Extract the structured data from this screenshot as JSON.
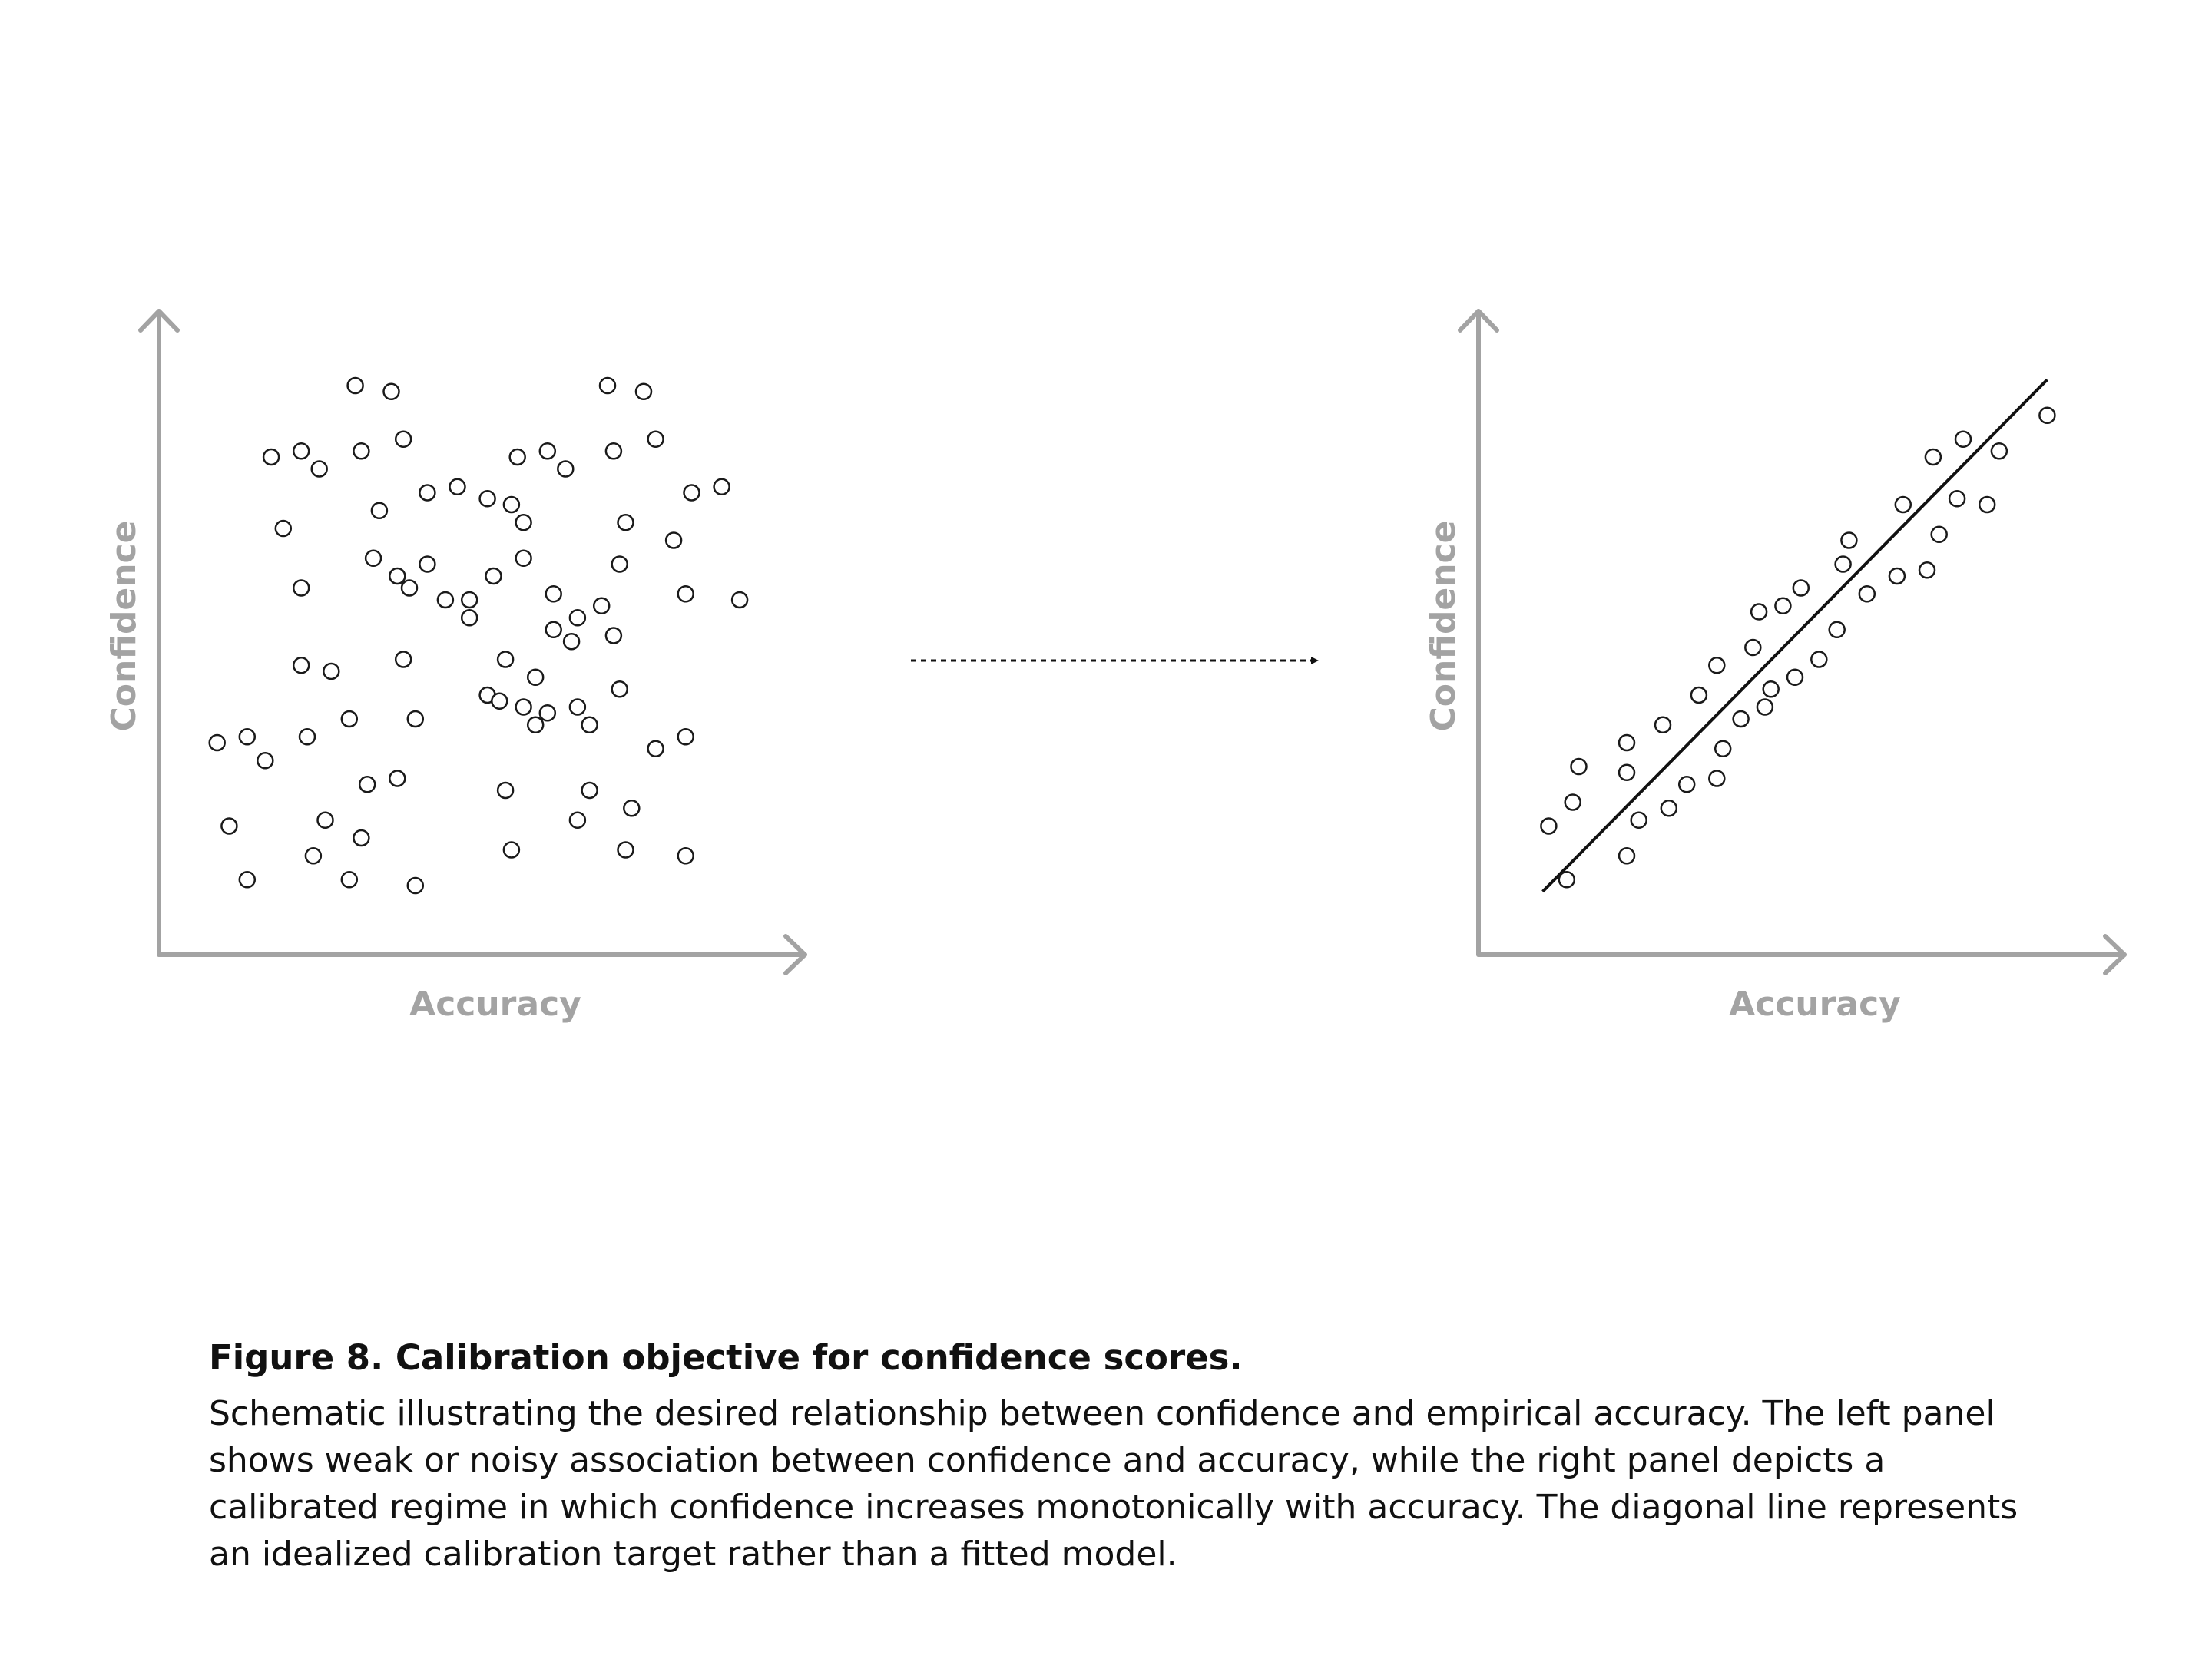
{
  "chart_data": [
    {
      "type": "scatter",
      "title": "",
      "xlabel": "Accuracy",
      "ylabel": "Confidence",
      "xlim": [
        0,
        1
      ],
      "ylim": [
        0,
        1
      ],
      "grid": false,
      "series": [
        {
          "points": [
            [
              0.3,
              0.92
            ],
            [
              0.36,
              0.91
            ],
            [
              0.72,
              0.92
            ],
            [
              0.78,
              0.91
            ],
            [
              0.16,
              0.8
            ],
            [
              0.21,
              0.81
            ],
            [
              0.24,
              0.78
            ],
            [
              0.31,
              0.81
            ],
            [
              0.38,
              0.83
            ],
            [
              0.57,
              0.8
            ],
            [
              0.62,
              0.81
            ],
            [
              0.65,
              0.78
            ],
            [
              0.73,
              0.81
            ],
            [
              0.8,
              0.83
            ],
            [
              0.42,
              0.74
            ],
            [
              0.47,
              0.75
            ],
            [
              0.52,
              0.73
            ],
            [
              0.56,
              0.72
            ],
            [
              0.86,
              0.74
            ],
            [
              0.91,
              0.75
            ],
            [
              0.18,
              0.68
            ],
            [
              0.34,
              0.71
            ],
            [
              0.58,
              0.69
            ],
            [
              0.75,
              0.69
            ],
            [
              0.83,
              0.66
            ],
            [
              0.33,
              0.63
            ],
            [
              0.42,
              0.62
            ],
            [
              0.53,
              0.6
            ],
            [
              0.58,
              0.63
            ],
            [
              0.74,
              0.62
            ],
            [
              0.21,
              0.58
            ],
            [
              0.37,
              0.6
            ],
            [
              0.39,
              0.58
            ],
            [
              0.45,
              0.56
            ],
            [
              0.49,
              0.56
            ],
            [
              0.49,
              0.53
            ],
            [
              0.63,
              0.57
            ],
            [
              0.67,
              0.53
            ],
            [
              0.71,
              0.55
            ],
            [
              0.85,
              0.57
            ],
            [
              0.94,
              0.56
            ],
            [
              0.63,
              0.51
            ],
            [
              0.66,
              0.49
            ],
            [
              0.73,
              0.5
            ],
            [
              0.21,
              0.45
            ],
            [
              0.26,
              0.44
            ],
            [
              0.38,
              0.46
            ],
            [
              0.55,
              0.46
            ],
            [
              0.6,
              0.43
            ],
            [
              0.52,
              0.4
            ],
            [
              0.58,
              0.38
            ],
            [
              0.74,
              0.41
            ],
            [
              0.4,
              0.36
            ],
            [
              0.54,
              0.39
            ],
            [
              0.62,
              0.37
            ],
            [
              0.67,
              0.38
            ],
            [
              0.6,
              0.35
            ],
            [
              0.69,
              0.35
            ],
            [
              0.29,
              0.36
            ],
            [
              0.07,
              0.32
            ],
            [
              0.12,
              0.33
            ],
            [
              0.22,
              0.33
            ],
            [
              0.85,
              0.33
            ],
            [
              0.15,
              0.29
            ],
            [
              0.8,
              0.31
            ],
            [
              0.32,
              0.25
            ],
            [
              0.37,
              0.26
            ],
            [
              0.55,
              0.24
            ],
            [
              0.69,
              0.24
            ],
            [
              0.76,
              0.21
            ],
            [
              0.09,
              0.18
            ],
            [
              0.25,
              0.19
            ],
            [
              0.67,
              0.19
            ],
            [
              0.31,
              0.16
            ],
            [
              0.23,
              0.13
            ],
            [
              0.56,
              0.14
            ],
            [
              0.75,
              0.14
            ],
            [
              0.85,
              0.13
            ],
            [
              0.12,
              0.09
            ],
            [
              0.29,
              0.09
            ],
            [
              0.4,
              0.08
            ]
          ]
        }
      ]
    },
    {
      "type": "scatter",
      "title": "",
      "xlabel": "Accuracy",
      "ylabel": "Confidence",
      "xlim": [
        0,
        1
      ],
      "ylim": [
        0,
        1
      ],
      "grid": false,
      "reference_line": {
        "from": [
          0.08,
          0.07
        ],
        "to": [
          0.92,
          0.93
        ],
        "style": "solid"
      },
      "series": [
        {
          "points": [
            [
              0.09,
              0.18
            ],
            [
              0.13,
              0.22
            ],
            [
              0.14,
              0.28
            ],
            [
              0.12,
              0.09
            ],
            [
              0.22,
              0.32
            ],
            [
              0.22,
              0.27
            ],
            [
              0.24,
              0.19
            ],
            [
              0.22,
              0.13
            ],
            [
              0.28,
              0.35
            ],
            [
              0.29,
              0.21
            ],
            [
              0.32,
              0.25
            ],
            [
              0.34,
              0.4
            ],
            [
              0.37,
              0.26
            ],
            [
              0.37,
              0.45
            ],
            [
              0.38,
              0.31
            ],
            [
              0.41,
              0.36
            ],
            [
              0.43,
              0.48
            ],
            [
              0.44,
              0.54
            ],
            [
              0.45,
              0.38
            ],
            [
              0.46,
              0.41
            ],
            [
              0.48,
              0.55
            ],
            [
              0.5,
              0.43
            ],
            [
              0.51,
              0.58
            ],
            [
              0.54,
              0.46
            ],
            [
              0.57,
              0.51
            ],
            [
              0.58,
              0.62
            ],
            [
              0.59,
              0.66
            ],
            [
              0.62,
              0.57
            ],
            [
              0.67,
              0.6
            ],
            [
              0.68,
              0.72
            ],
            [
              0.72,
              0.61
            ],
            [
              0.73,
              0.8
            ],
            [
              0.74,
              0.67
            ],
            [
              0.77,
              0.73
            ],
            [
              0.78,
              0.83
            ],
            [
              0.82,
              0.72
            ],
            [
              0.84,
              0.81
            ],
            [
              0.92,
              0.87
            ]
          ]
        }
      ]
    }
  ],
  "caption": {
    "title": "Figure 8. Calibration objective for confidence scores.",
    "body": "Schematic illustrating the desired relationship between confidence and empirical accuracy. The left panel shows weak or noisy association between confidence and accuracy, while the right panel depicts a calibrated regime in which confidence increases monotonically with accuracy. The diagonal line represents an idealized calibration target rather than a fitted model."
  },
  "colors": {
    "axis": "#a3a3a3",
    "marker_stroke": "#1a1a1a",
    "arrow": "#111111"
  }
}
